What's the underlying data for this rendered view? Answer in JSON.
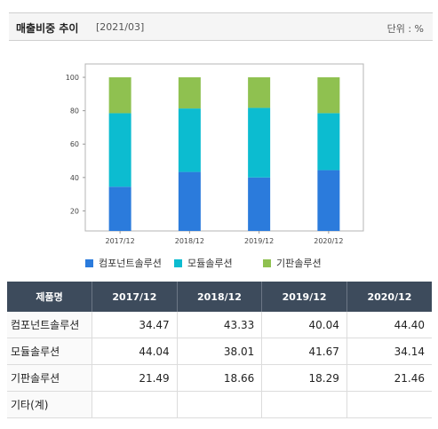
{
  "header": {
    "title": "매출비중 추이",
    "date": "[2021/03]",
    "unit": "단위 : %"
  },
  "chart_data": {
    "type": "bar",
    "stacked": true,
    "categories": [
      "2017/12",
      "2018/12",
      "2019/12",
      "2020/12"
    ],
    "ylim": [
      8,
      108
    ],
    "yticks": [
      20,
      40,
      60,
      80,
      100
    ],
    "grid": false,
    "legend_position": "bottom",
    "series": [
      {
        "name": "컴포넌트솔루션",
        "color": "#2b7bdc",
        "values": [
          34.47,
          43.33,
          40.04,
          44.4
        ]
      },
      {
        "name": "모듈솔루션",
        "color": "#0cbcd0",
        "values": [
          44.04,
          38.01,
          41.67,
          34.14
        ]
      },
      {
        "name": "기판솔루션",
        "color": "#8fc150",
        "values": [
          21.49,
          18.66,
          18.29,
          21.46
        ]
      }
    ]
  },
  "table": {
    "header_label": "제품명",
    "columns": [
      "2017/12",
      "2018/12",
      "2019/12",
      "2020/12"
    ],
    "rows": [
      {
        "name": "컴포넌트솔루션",
        "values": [
          "34.47",
          "43.33",
          "40.04",
          "44.40"
        ]
      },
      {
        "name": "모듈솔루션",
        "values": [
          "44.04",
          "38.01",
          "41.67",
          "34.14"
        ]
      },
      {
        "name": "기판솔루션",
        "values": [
          "21.49",
          "18.66",
          "18.29",
          "21.46"
        ]
      },
      {
        "name": "기타(계)",
        "values": [
          "",
          "",
          "",
          ""
        ]
      }
    ]
  }
}
